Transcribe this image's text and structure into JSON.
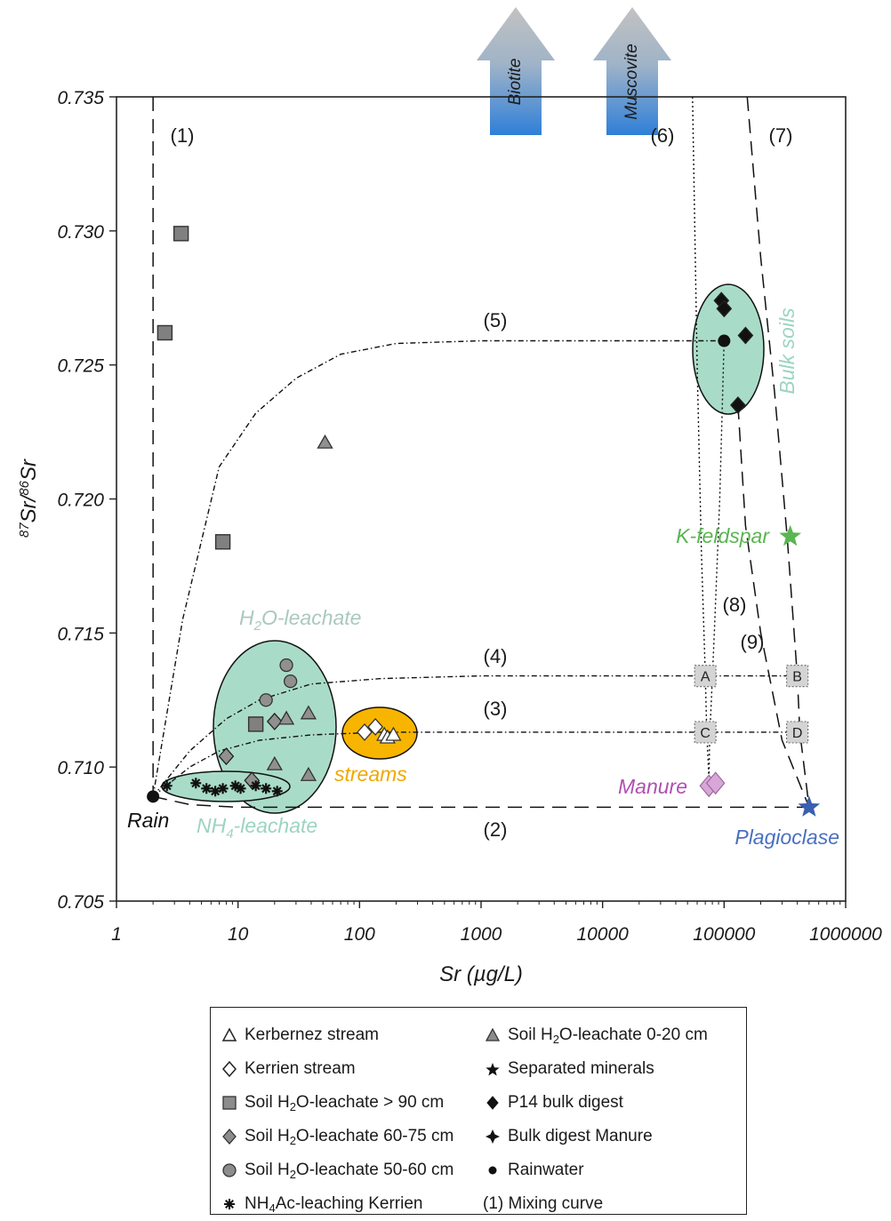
{
  "chart_data": {
    "type": "scatter",
    "title": "",
    "xlabel": "Sr (µg/L)",
    "ylabel_parts": [
      "87",
      "Sr/",
      "86",
      "Sr"
    ],
    "x_scale": "log",
    "xlim": [
      1,
      1000000
    ],
    "ylim": [
      0.705,
      0.735
    ],
    "x_ticks": [
      1,
      10,
      100,
      1000,
      10000,
      100000,
      1000000
    ],
    "x_tick_labels": [
      "1",
      "10",
      "100",
      "1000",
      "10000",
      "100000",
      "1000000"
    ],
    "y_ticks": [
      0.705,
      0.71,
      0.715,
      0.72,
      0.725,
      0.73,
      0.735
    ],
    "y_tick_labels": [
      "0.705",
      "0.710",
      "0.715",
      "0.720",
      "0.725",
      "0.730",
      "0.735"
    ],
    "series": [
      {
        "name": "Kerbernez stream",
        "marker": "triangle-open",
        "color": "#ffffff",
        "x": [
          160,
          170,
          190
        ],
        "y": [
          0.7112,
          0.7111,
          0.7112
        ]
      },
      {
        "name": "Kerrien stream",
        "marker": "diamond-open",
        "color": "#ffffff",
        "x": [
          110,
          135
        ],
        "y": [
          0.7113,
          0.7115
        ]
      },
      {
        "name": "Soil H2O-leachate > 90 cm",
        "marker": "square",
        "color": "#808080",
        "x": [
          3.4,
          2.5,
          7.5,
          14
        ],
        "y": [
          0.7299,
          0.7262,
          0.7184,
          0.7116
        ]
      },
      {
        "name": "Soil H2O-leachate 60-75 cm",
        "marker": "diamond",
        "color": "#909090",
        "x": [
          8,
          20,
          13
        ],
        "y": [
          0.7104,
          0.7117,
          0.7095
        ]
      },
      {
        "name": "Soil H2O-leachate 50-60 cm",
        "marker": "circle",
        "color": "#909090",
        "x": [
          17,
          25,
          27
        ],
        "y": [
          0.7125,
          0.7138,
          0.7132
        ]
      },
      {
        "name": "NH4Ac-leaching Kerrien",
        "marker": "asterisk",
        "color": "#111111",
        "x": [
          2.6,
          4.5,
          5.5,
          6.5,
          7.5,
          9.5,
          10.5,
          14,
          17,
          21
        ],
        "y": [
          0.7093,
          0.7094,
          0.7092,
          0.7091,
          0.7092,
          0.7093,
          0.7092,
          0.7093,
          0.7092,
          0.7091
        ]
      },
      {
        "name": "Soil H2O-leachate 0-20 cm",
        "marker": "triangle",
        "color": "#909090",
        "x": [
          52,
          25,
          38,
          20,
          38
        ],
        "y": [
          0.7221,
          0.7118,
          0.712,
          0.7101,
          0.7097
        ]
      },
      {
        "name": "Separated minerals",
        "marker": "star",
        "color": "#5ab552",
        "x": [
          350000
        ],
        "y": [
          0.7186
        ],
        "note": "K-feldspar"
      },
      {
        "name": "Separated minerals",
        "marker": "star",
        "color": "#3a5fb0",
        "x": [
          500000
        ],
        "y": [
          0.7085
        ],
        "note": "Plagioclase"
      },
      {
        "name": "P14 bulk digest",
        "marker": "diamond",
        "color": "#111111",
        "x": [
          95000,
          100000,
          150000,
          130000
        ],
        "y": [
          0.7274,
          0.7271,
          0.7261,
          0.7235
        ]
      },
      {
        "name": "Bulk digest Manure",
        "marker": "diamond",
        "color": "#d8a6d8",
        "x": [
          75000,
          85000
        ],
        "y": [
          0.7093,
          0.7094
        ]
      },
      {
        "name": "Rainwater",
        "marker": "circle",
        "color": "#111111",
        "x": [
          2
        ],
        "y": [
          0.7089
        ],
        "note": "Rain"
      },
      {
        "name": "Rainwater",
        "marker": "circle",
        "color": "#111111",
        "x": [
          100000
        ],
        "y": [
          0.7259
        ]
      }
    ],
    "endmember_boxes": [
      {
        "label": "A",
        "x": 70000,
        "y": 0.7134
      },
      {
        "label": "B",
        "x": 400000,
        "y": 0.7134
      },
      {
        "label": "C",
        "x": 70000,
        "y": 0.7113
      },
      {
        "label": "D",
        "x": 400000,
        "y": 0.7113
      }
    ],
    "mixing_curves": [
      {
        "label": "(1)",
        "label_x": 2.7,
        "label_y": 0.7333
      },
      {
        "label": "(2)",
        "label_x": 800,
        "label_y": 0.7077
      },
      {
        "label": "(3)",
        "label_x": 800,
        "label_y": 0.7122
      },
      {
        "label": "(4)",
        "label_x": 800,
        "label_y": 0.7142
      },
      {
        "label": "(5)",
        "label_x": 800,
        "label_y": 0.7267
      },
      {
        "label": "(6)",
        "label_x": 40000,
        "label_y": 0.7333
      },
      {
        "label": "(7)",
        "label_x": 300000,
        "label_y": 0.7333
      },
      {
        "label": "(8)",
        "label_x": 115000,
        "label_y": 0.7161
      },
      {
        "label": "(9)",
        "label_x": 190000,
        "label_y": 0.7147
      }
    ],
    "field_annotations": [
      {
        "text": "H2O-leachate",
        "color": "#a9c9bd"
      },
      {
        "text": "NH4-leachate",
        "color": "#9cd4c0"
      },
      {
        "text": "streams",
        "color": "#f0a800"
      },
      {
        "text": "Bulk soils",
        "color": "#9cd4c0"
      },
      {
        "text": "K-feldspar",
        "color": "#5ab552"
      },
      {
        "text": "Manure",
        "color": "#b050b0"
      },
      {
        "text": "Plagioclase",
        "color": "#4a6fc0"
      },
      {
        "text": "Rain",
        "color": "#111111"
      }
    ],
    "arrows": [
      "Biotite",
      "Muscovite"
    ],
    "legend_placement": "bottom",
    "legend": {
      "col1": [
        {
          "symbol": "triangle-open",
          "text": "Kerbernez stream"
        },
        {
          "symbol": "diamond-open",
          "text": "Kerrien stream"
        },
        {
          "symbol": "square",
          "text_pre": "Soil H",
          "sub": "2",
          "text_post": "O-leachate > 90 cm"
        },
        {
          "symbol": "diamond",
          "text_pre": "Soil H",
          "sub": "2",
          "text_post": "O-leachate 60-75 cm"
        },
        {
          "symbol": "circle",
          "text_pre": "Soil H",
          "sub": "2",
          "text_post": "O-leachate 50-60 cm"
        },
        {
          "symbol": "asterisk",
          "text_pre": "NH",
          "sub": "4",
          "text_post": "Ac-leaching Kerrien"
        }
      ],
      "col2": [
        {
          "symbol": "triangle",
          "text_pre": "Soil H",
          "sub": "2",
          "text_post": "O-leachate 0-20 cm"
        },
        {
          "symbol": "star",
          "text": "Separated minerals"
        },
        {
          "symbol": "diamond-black",
          "text": "P14 bulk digest"
        },
        {
          "symbol": "cross-diamond",
          "text": "Bulk digest Manure"
        },
        {
          "symbol": "dot",
          "text": "Rainwater"
        },
        {
          "symbol": "none",
          "text": "(1) Mixing curve"
        }
      ]
    },
    "colors": {
      "field_green": "#a9dcc8",
      "streams_fill": "#f7b500",
      "arrow_top": "#b8b8b8",
      "arrow_bottom": "#2f7fd8"
    }
  }
}
